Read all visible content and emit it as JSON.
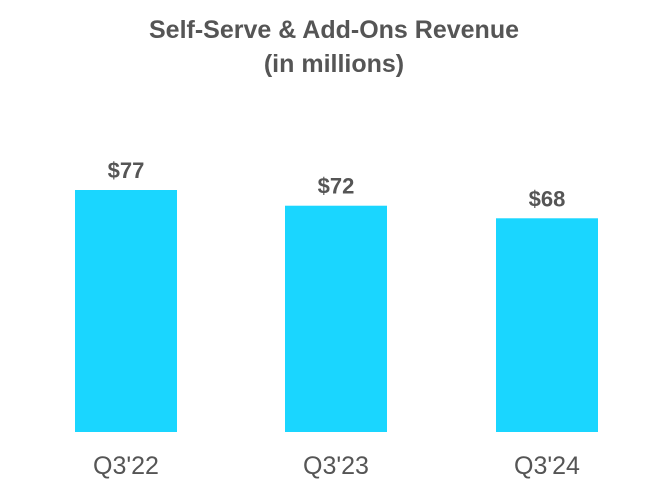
{
  "chart_data": {
    "type": "bar",
    "title": "Self-Serve & Add-Ons Revenue",
    "subtitle": "(in millions)",
    "categories": [
      "Q3'22",
      "Q3'23",
      "Q3'24"
    ],
    "values": [
      77,
      72,
      68
    ],
    "value_labels": [
      "$77",
      "$72",
      "$68"
    ],
    "ylim": [
      0,
      77
    ],
    "grid": false,
    "legend": "none",
    "bar_color": "#1AD6FF",
    "text_color": "#555555"
  }
}
